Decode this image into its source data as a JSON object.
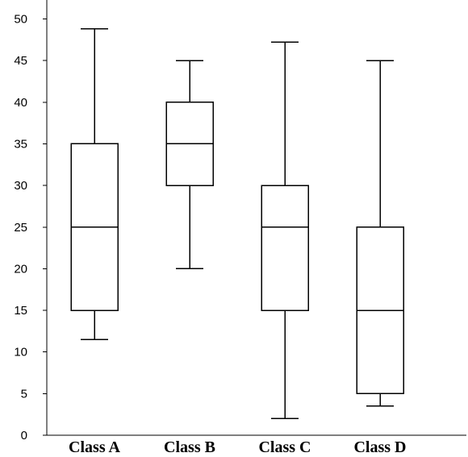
{
  "chart_data": {
    "type": "box",
    "title": "",
    "xlabel": "",
    "ylabel": "",
    "ylim": [
      0,
      52
    ],
    "yticks": [
      0,
      5,
      10,
      15,
      20,
      25,
      30,
      35,
      40,
      45,
      50
    ],
    "grid": false,
    "categories": [
      "Class A",
      "Class B",
      "Class C",
      "Class D"
    ],
    "boxes": [
      {
        "category": "Class A",
        "min": 11.5,
        "q1": 15,
        "median": 25,
        "q3": 35,
        "max": 48.8
      },
      {
        "category": "Class B",
        "min": 20,
        "q1": 30,
        "median": 35,
        "q3": 40,
        "max": 45
      },
      {
        "category": "Class C",
        "min": 2,
        "q1": 15,
        "median": 25,
        "q3": 30,
        "max": 47.2
      },
      {
        "category": "Class D",
        "min": 3.5,
        "q1": 5,
        "median": 15,
        "q3": 25,
        "max": 45
      }
    ]
  }
}
